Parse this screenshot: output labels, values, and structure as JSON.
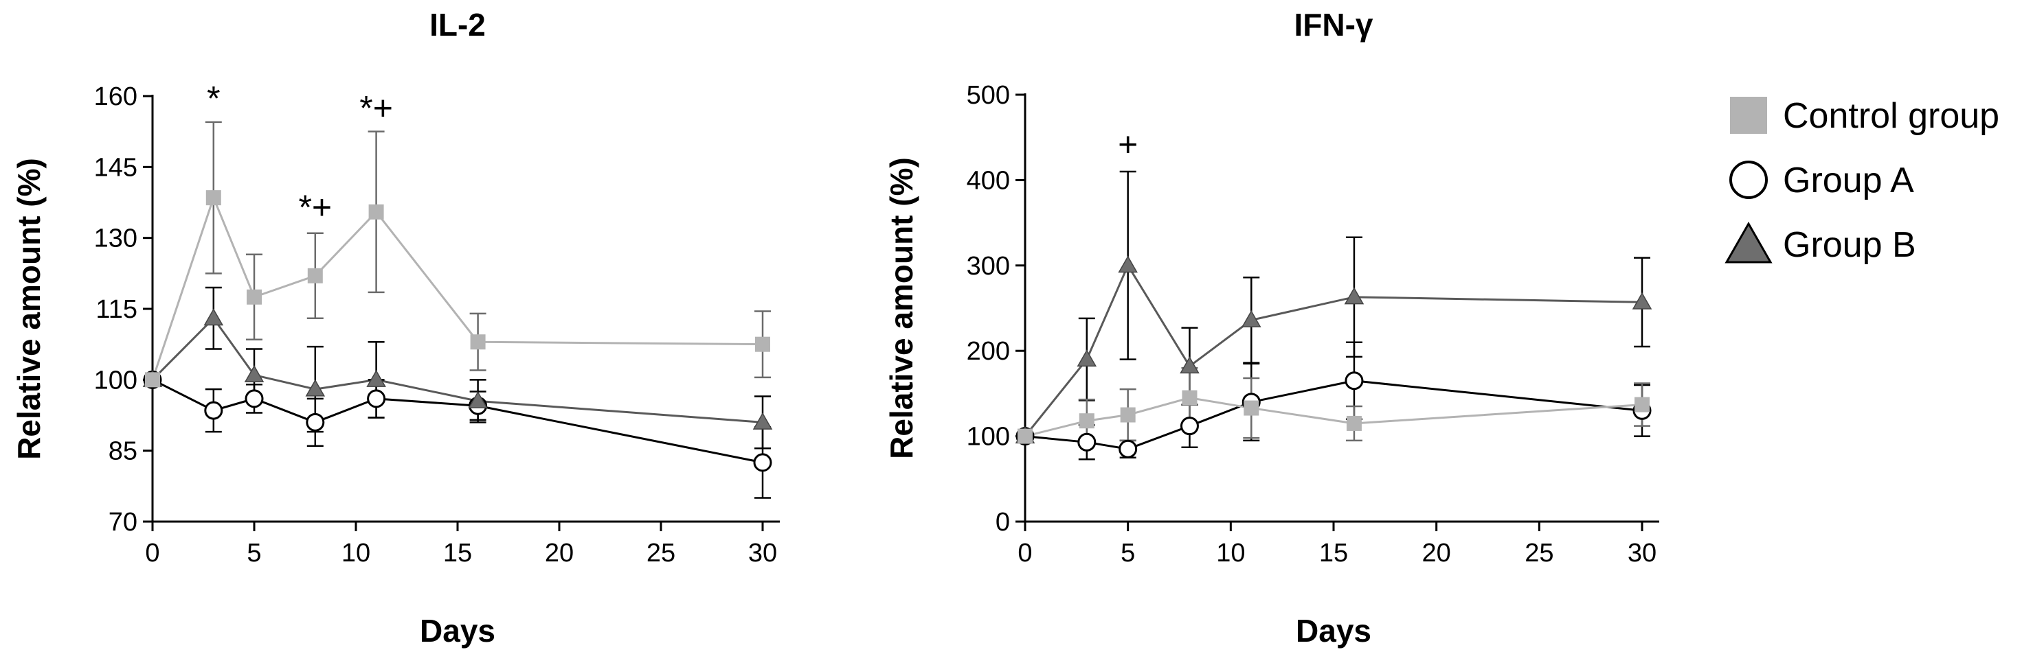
{
  "chart_data": [
    {
      "type": "line",
      "title": "IL-2",
      "xlabel": "Days",
      "ylabel": "Relative amount (%)",
      "xlim": [
        0,
        30
      ],
      "ylim": [
        70,
        160
      ],
      "xticks": [
        "0",
        "5",
        "10",
        "15",
        "20",
        "25",
        "30"
      ],
      "yticks": [
        "70",
        "85",
        "100",
        "115",
        "130",
        "145",
        "160"
      ],
      "x": [
        0,
        3,
        5,
        8,
        11,
        16,
        30
      ],
      "series": [
        {
          "name": "Control group",
          "marker": "square",
          "color": "#b3b3b3",
          "values": [
            100,
            138.5,
            117.5,
            122,
            135.5,
            108,
            107.5
          ],
          "errors": [
            0,
            16,
            9,
            9,
            17,
            6,
            7
          ]
        },
        {
          "name": "Group A",
          "marker": "circle",
          "color": "#000000",
          "values": [
            100,
            93.5,
            96,
            91,
            96,
            94.5,
            82.5
          ],
          "errors": [
            0,
            4.5,
            3,
            5,
            4,
            3,
            7.5
          ]
        },
        {
          "name": "Group B",
          "marker": "triangle",
          "color": "#595959",
          "values": [
            100,
            113,
            101,
            98,
            100,
            95.5,
            91
          ],
          "errors": [
            0,
            6.5,
            5.5,
            9,
            8,
            4.5,
            5.5
          ]
        }
      ],
      "annotations": [
        {
          "x": 3,
          "y": 157,
          "text": "*"
        },
        {
          "x": 8,
          "y": 134,
          "text": "*+"
        },
        {
          "x": 11,
          "y": 155,
          "text": "*+"
        }
      ]
    },
    {
      "type": "line",
      "title": "IFN-γ",
      "xlabel": "Days",
      "ylabel": "Relative amount (%)",
      "xlim": [
        0,
        30
      ],
      "ylim": [
        0,
        500
      ],
      "xticks": [
        "0",
        "5",
        "10",
        "15",
        "20",
        "25",
        "30"
      ],
      "yticks": [
        "0",
        "100",
        "200",
        "300",
        "400",
        "500"
      ],
      "x": [
        0,
        3,
        5,
        8,
        11,
        16,
        30
      ],
      "series": [
        {
          "name": "Control group",
          "marker": "square",
          "color": "#b3b3b3",
          "values": [
            100,
            118,
            125,
            145,
            133,
            115,
            137
          ],
          "errors": [
            0,
            25,
            30,
            35,
            35,
            20,
            25
          ]
        },
        {
          "name": "Group A",
          "marker": "circle",
          "color": "#000000",
          "values": [
            100,
            93,
            85,
            112,
            140,
            165,
            130
          ],
          "errors": [
            0,
            20,
            10,
            25,
            45,
            45,
            30
          ]
        },
        {
          "name": "Group B",
          "marker": "triangle",
          "color": "#595959",
          "values": [
            100,
            190,
            300,
            182,
            236,
            263,
            257
          ],
          "errors": [
            0,
            48,
            110,
            45,
            50,
            70,
            52
          ]
        }
      ],
      "annotations": [
        {
          "x": 5,
          "y": 428,
          "text": "+"
        }
      ]
    }
  ],
  "legend": {
    "placement": "right",
    "items": [
      {
        "label": "Control group",
        "marker": "square",
        "color": "#b3b3b3"
      },
      {
        "label": "Group A",
        "marker": "circle",
        "color": "#ffffff"
      },
      {
        "label": "Group B",
        "marker": "triangle",
        "color": "#6e6e6e"
      }
    ]
  }
}
